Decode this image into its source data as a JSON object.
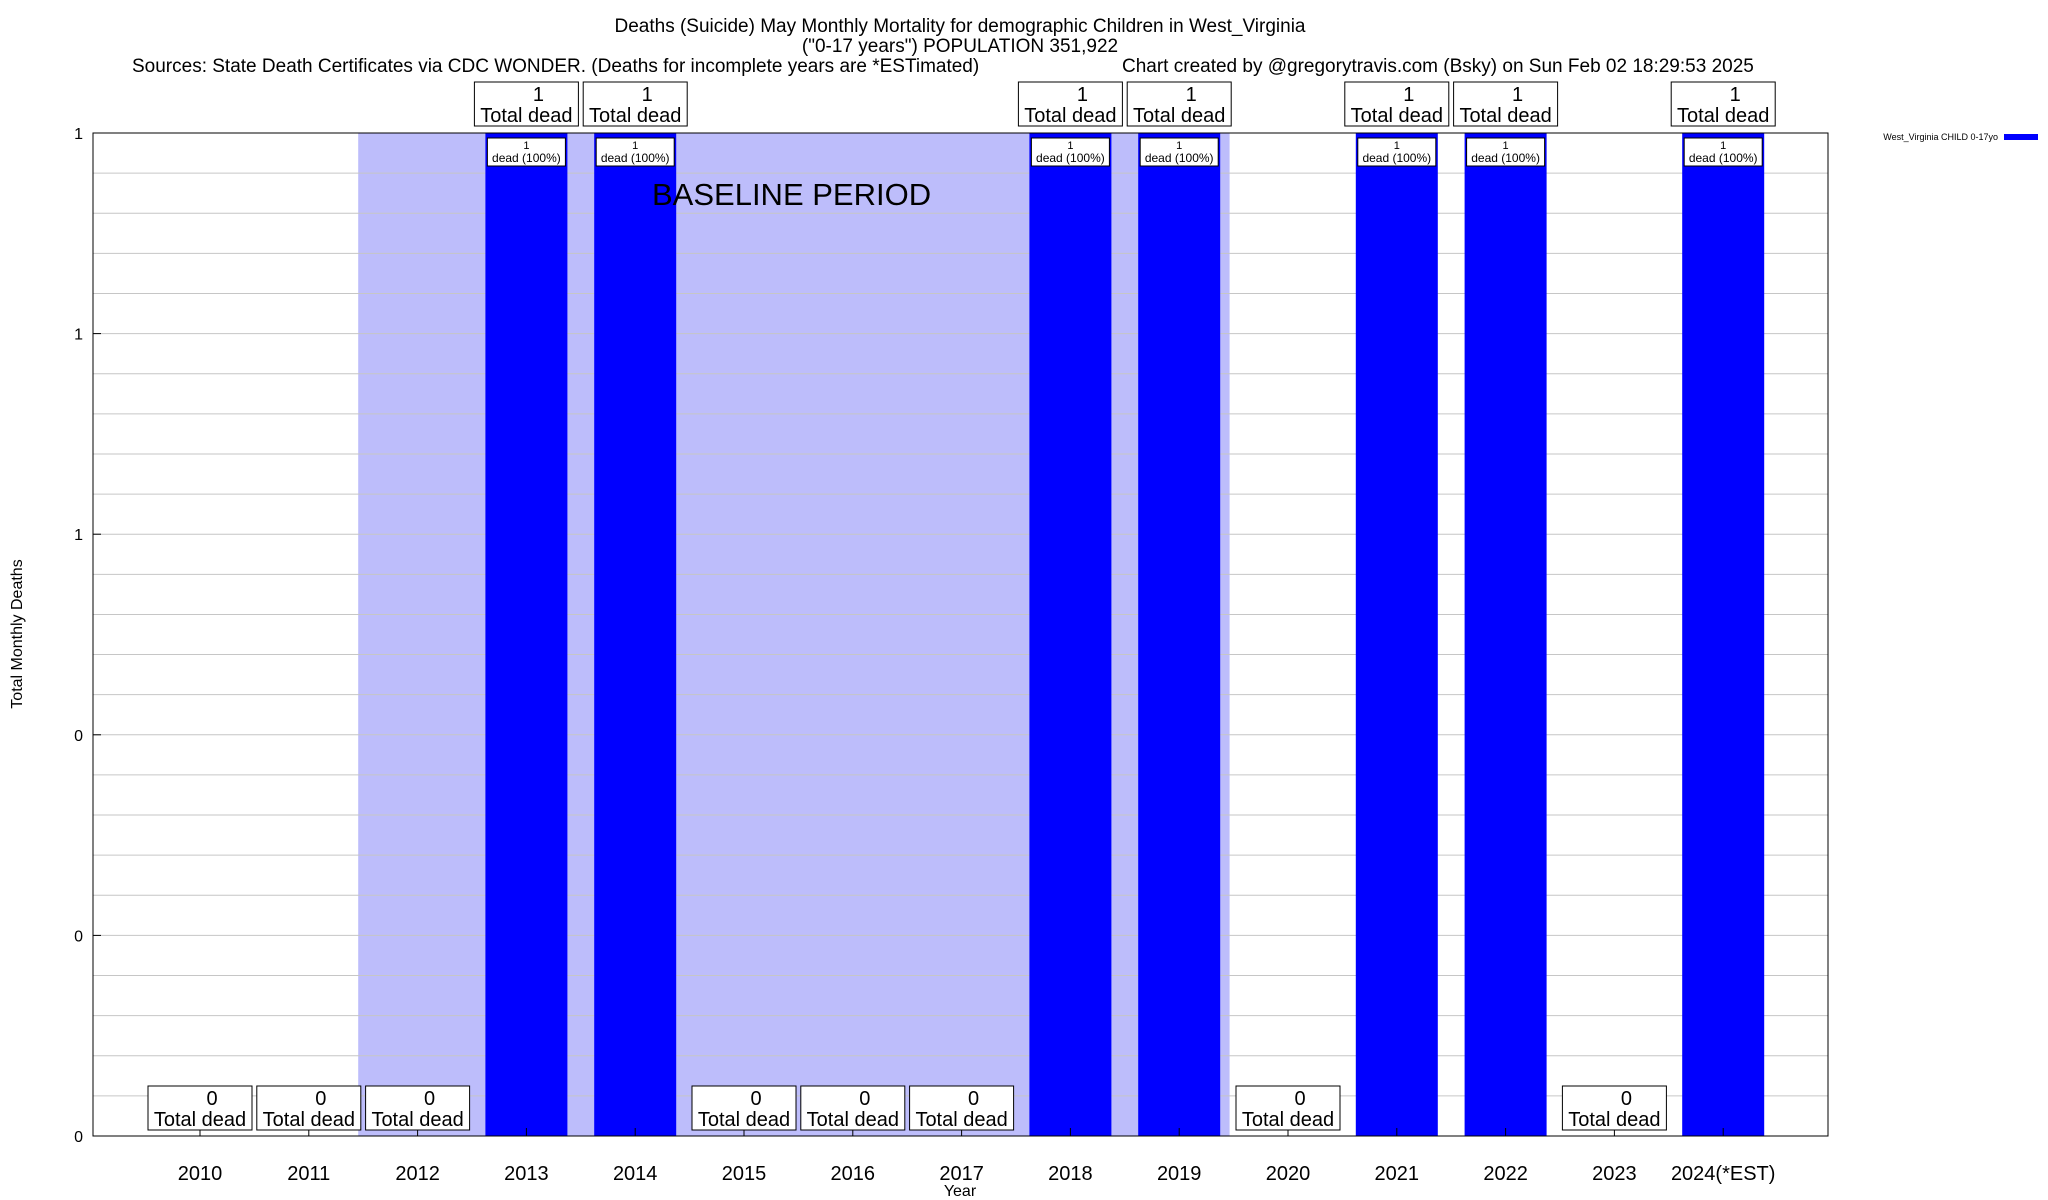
{
  "chart_data": {
    "type": "bar",
    "title": "Deaths (Suicide) May Monthly Mortality for demographic Children in West_Virginia",
    "subtitle": "(\"0-17 years\") POPULATION 351,922",
    "sources_note": "Sources: State Death Certificates via CDC WONDER. (Deaths for incomplete years are *ESTimated)",
    "credit_note": "Chart created by @gregorytravis.com (Bsky) on Sun Feb 02 18:29:53 2025",
    "xlabel": "Year",
    "ylabel": "Total Monthly Deaths",
    "ylim": [
      0,
      1
    ],
    "y_tick_labels": [
      "0",
      "0",
      "0",
      "1",
      "1",
      "1"
    ],
    "grid": true,
    "legend_position": "top-right",
    "categories": [
      "2010",
      "2011",
      "2012",
      "2013",
      "2014",
      "2015",
      "2016",
      "2017",
      "2018",
      "2019",
      "2020",
      "2021",
      "2022",
      "2023",
      "2024(*EST)"
    ],
    "series": [
      {
        "name": "West_Virginia CHILD 0-17yo",
        "color": "#0000ff",
        "values": [
          0,
          0,
          0,
          1,
          1,
          0,
          0,
          0,
          1,
          1,
          0,
          1,
          1,
          0,
          1
        ]
      }
    ],
    "total_labels": [
      "0\nTotal dead",
      "0\nTotal dead",
      "0\nTotal dead",
      "1\nTotal dead",
      "1\nTotal dead",
      "0\nTotal dead",
      "0\nTotal dead",
      "0\nTotal dead",
      "1\nTotal dead",
      "1\nTotal dead",
      "0\nTotal dead",
      "1\nTotal dead",
      "1\nTotal dead",
      "0\nTotal dead",
      "1\nTotal dead"
    ],
    "bar_labels": [
      "",
      "",
      "",
      "1\ndead (100%)",
      "1\ndead (100%)",
      "",
      "",
      "",
      "1\ndead (100%)",
      "1\ndead (100%)",
      "",
      "1\ndead (100%)",
      "1\ndead (100%)",
      "",
      "1\ndead (100%)"
    ],
    "baseline": {
      "label": "BASELINE PERIOD",
      "from": "2012",
      "to": "2019",
      "color": "#bdbdfb"
    }
  }
}
